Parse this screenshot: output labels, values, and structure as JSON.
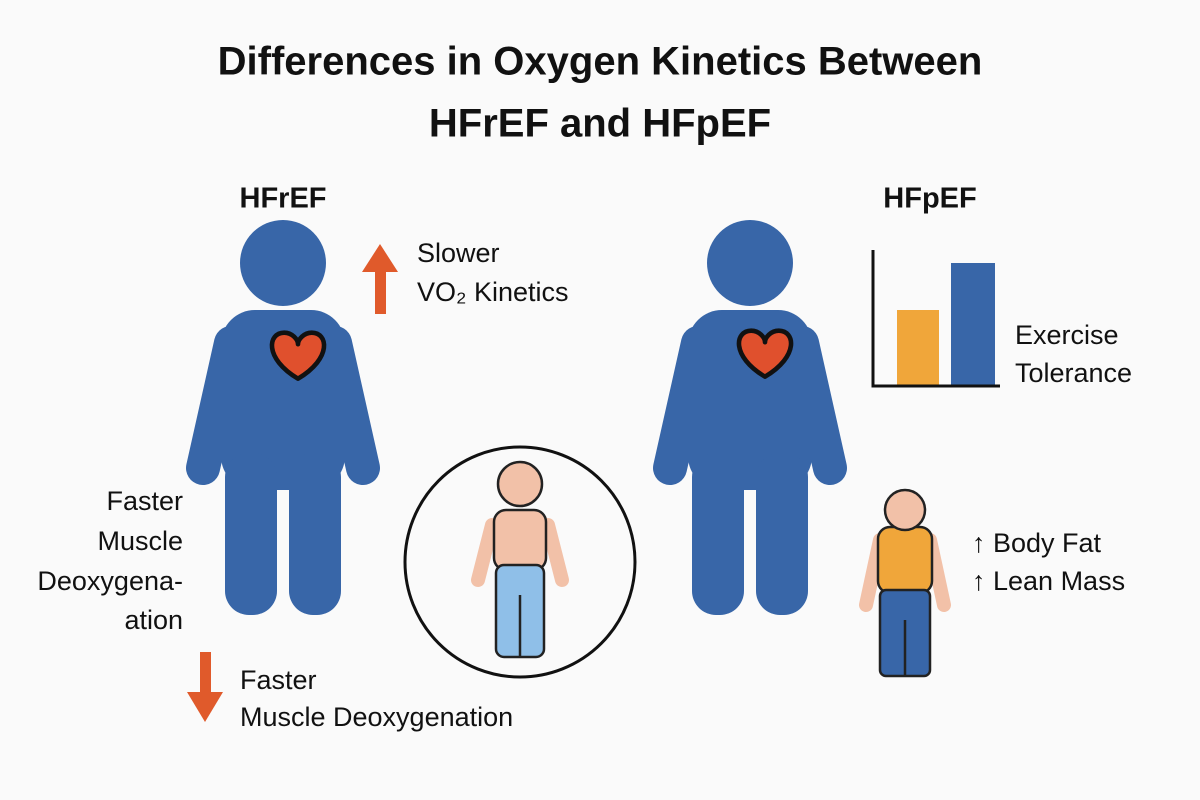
{
  "title": {
    "lines": [
      "Differences in Oxygen Kinetics Between",
      "HFrEF and HFpEF"
    ]
  },
  "left": {
    "heading": "HFrEF",
    "annotation": [
      "Slower",
      "VO₂ Kinetics"
    ],
    "side_label": [
      "Faster",
      "Muscle",
      "Deoxygena-",
      "ation"
    ],
    "bottom_label": [
      "Faster",
      "Muscle Deoxygenation"
    ]
  },
  "right": {
    "heading": "HFpEF",
    "chart_label": [
      "Exercise",
      "Tolerance"
    ],
    "body_label": [
      "↑ Body Fat",
      "↑ Lean Mass"
    ]
  }
}
